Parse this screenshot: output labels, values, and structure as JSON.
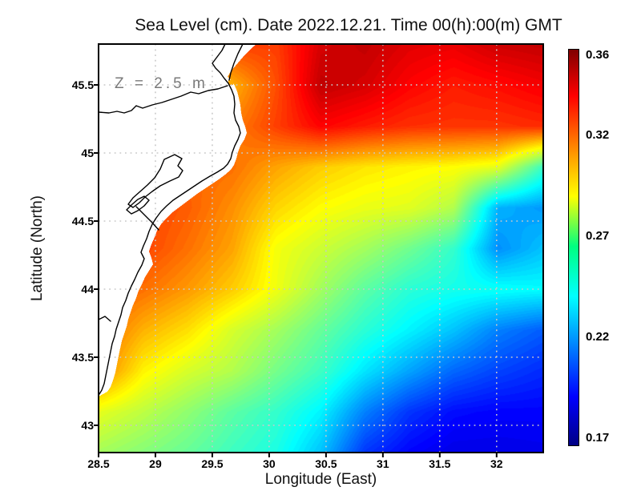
{
  "title": "Sea Level (cm). Date 2022.12.21. Time 00(h):00(m) GMT",
  "annotation": "Z = 2.5 m",
  "axes": {
    "x_label": "Longitude (East)",
    "y_label": "Latitude (North)",
    "x_tick_labels": [
      "28.5",
      "29",
      "29.5",
      "30",
      "30.5",
      "31",
      "31.5",
      "32"
    ],
    "x_tick_values": [
      28.5,
      29,
      29.5,
      30,
      30.5,
      31,
      31.5,
      32
    ],
    "y_tick_labels": [
      "45.5",
      "45",
      "44.5",
      "44",
      "43.5",
      "43"
    ],
    "y_tick_values": [
      45.5,
      45,
      44.5,
      44,
      43.5,
      43
    ]
  },
  "colorbar": {
    "tick_labels": [
      "0.36",
      "0.32",
      "0.27",
      "0.22",
      "0.17"
    ],
    "tick_values": [
      0.36,
      0.32,
      0.27,
      0.22,
      0.17
    ],
    "value_top": 0.363,
    "value_span": 0.197,
    "gradient_stops": [
      [
        "#800000",
        0
      ],
      [
        "#ff0000",
        0.117
      ],
      [
        "#ff9e00",
        0.269
      ],
      [
        "#ffff00",
        0.371
      ],
      [
        "#00ff80",
        0.497
      ],
      [
        "#00ffff",
        0.624
      ],
      [
        "#0000ff",
        0.878
      ],
      [
        "#000084",
        1
      ]
    ]
  },
  "map_colors": {
    "land": "#ffffff",
    "coastline": "#000000",
    "gridline": "#c9c9c9",
    "bay_water": "#ffaa00"
  },
  "chart_data": {
    "type": "heatmap",
    "title": "Sea Level (cm). Date 2022.12.21. Time 00(h):00(m) GMT",
    "xlabel": "Longitude (East)",
    "ylabel": "Latitude (North)",
    "annotation": "Z = 2.5 m",
    "x_range": [
      28.5,
      32.41
    ],
    "y_range": [
      42.8,
      45.8
    ],
    "colormap": "jet",
    "vmin": 0.165,
    "vmax": 0.365,
    "colorbar_ticks": [
      0.36,
      0.32,
      0.27,
      0.22,
      0.17
    ],
    "grid": true,
    "legend_position": "right-colorbar",
    "field": {
      "lon0": 28.5,
      "dlon": 0.39,
      "lat0": 45.8,
      "dlat": 0.3,
      "ncols": 11,
      "nrows": 11,
      "values": [
        [
          0.33,
          0.33,
          0.33,
          0.328,
          0.328,
          0.348,
          0.352,
          0.346,
          0.344,
          0.35,
          0.352
        ],
        [
          0.325,
          0.325,
          0.323,
          0.305,
          0.325,
          0.352,
          0.348,
          0.34,
          0.335,
          0.338,
          0.342
        ],
        [
          0.323,
          0.323,
          0.322,
          0.315,
          0.328,
          0.34,
          0.335,
          0.331,
          0.33,
          0.33,
          0.332
        ],
        [
          0.322,
          0.322,
          0.32,
          0.318,
          0.308,
          0.3,
          0.295,
          0.292,
          0.29,
          0.285,
          0.252
        ],
        [
          0.328,
          0.328,
          0.322,
          0.312,
          0.298,
          0.29,
          0.286,
          0.284,
          0.275,
          0.225,
          0.22
        ],
        [
          0.327,
          0.327,
          0.318,
          0.308,
          0.288,
          0.28,
          0.272,
          0.262,
          0.25,
          0.218,
          0.228
        ],
        [
          0.323,
          0.318,
          0.31,
          0.3,
          0.287,
          0.272,
          0.258,
          0.248,
          0.244,
          0.242,
          0.24
        ],
        [
          0.32,
          0.305,
          0.296,
          0.282,
          0.272,
          0.26,
          0.248,
          0.238,
          0.228,
          0.215,
          0.208
        ],
        [
          0.315,
          0.292,
          0.282,
          0.275,
          0.263,
          0.252,
          0.235,
          0.222,
          0.21,
          0.203,
          0.198
        ],
        [
          0.285,
          0.277,
          0.268,
          0.258,
          0.25,
          0.238,
          0.215,
          0.2,
          0.192,
          0.19,
          0.19
        ],
        [
          0.272,
          0.266,
          0.26,
          0.252,
          0.245,
          0.228,
          0.2,
          0.19,
          0.185,
          0.185,
          0.186
        ]
      ]
    }
  }
}
